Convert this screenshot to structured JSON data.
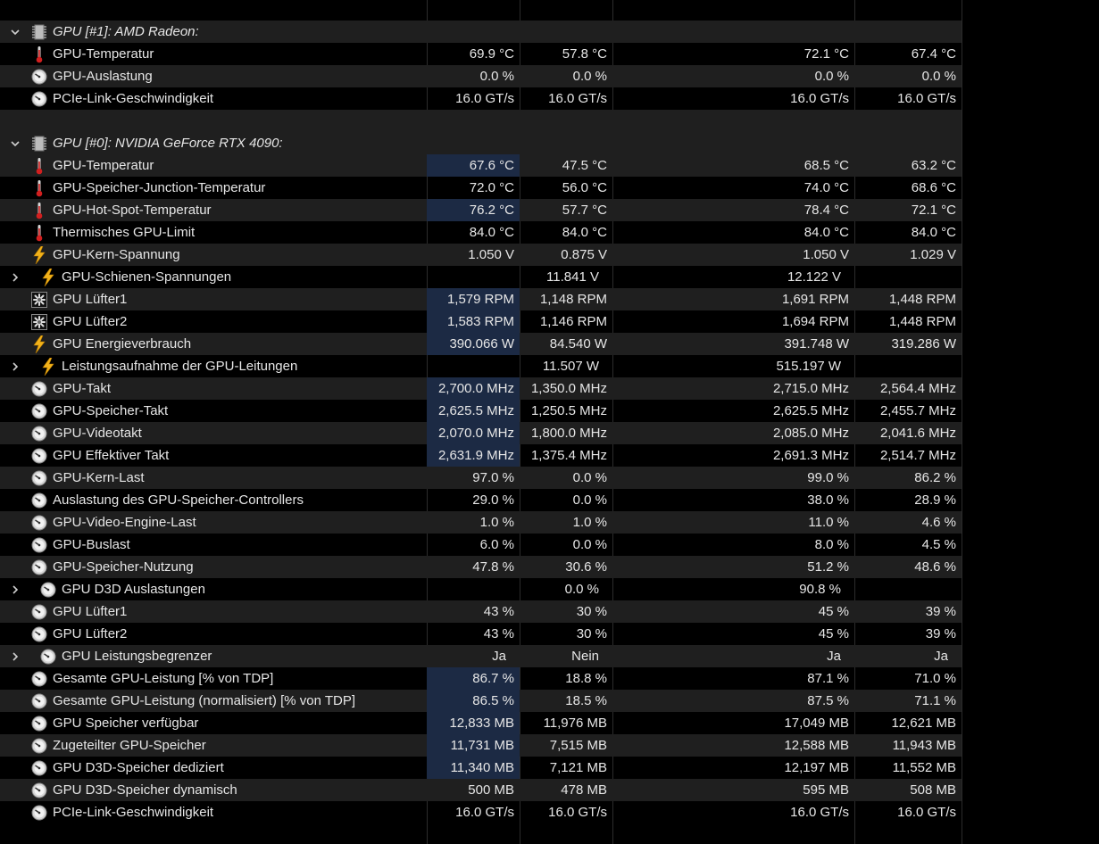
{
  "colors": {
    "background": "#000000",
    "row_band": "#1f1f1f",
    "highlight": "#1c2a44",
    "text": "#e6e6e6"
  },
  "groups": [
    {
      "title": "GPU [#1]: AMD Radeon:",
      "rows": [
        {
          "icon": "thermometer",
          "label": "GPU-Temperatur",
          "values": [
            "69.9 °C",
            "57.8 °C",
            "72.1 °C",
            "67.4 °C"
          ],
          "hl": false,
          "sub": false
        },
        {
          "icon": "gauge",
          "label": "GPU-Auslastung",
          "values": [
            "0.0 %",
            "0.0 %",
            "0.0 %",
            "0.0 %"
          ],
          "hl": false,
          "sub": false
        },
        {
          "icon": "gauge",
          "label": "PCIe-Link-Geschwindigkeit",
          "values": [
            "16.0 GT/s",
            "16.0 GT/s",
            "16.0 GT/s",
            "16.0 GT/s"
          ],
          "hl": false,
          "sub": false
        }
      ]
    },
    {
      "title": "GPU [#0]: NVIDIA GeForce RTX 4090:",
      "rows": [
        {
          "icon": "thermometer",
          "label": "GPU-Temperatur",
          "values": [
            "67.6 °C",
            "47.5 °C",
            "68.5 °C",
            "63.2 °C"
          ],
          "hl": true,
          "sub": false
        },
        {
          "icon": "thermometer",
          "label": "GPU-Speicher-Junction-Temperatur",
          "values": [
            "72.0 °C",
            "56.0 °C",
            "74.0 °C",
            "68.6 °C"
          ],
          "hl": false,
          "sub": false
        },
        {
          "icon": "thermometer",
          "label": "GPU-Hot-Spot-Temperatur",
          "values": [
            "76.2 °C",
            "57.7 °C",
            "78.4 °C",
            "72.1 °C"
          ],
          "hl": true,
          "sub": false
        },
        {
          "icon": "thermometer",
          "label": "Thermisches GPU-Limit",
          "values": [
            "84.0 °C",
            "84.0 °C",
            "84.0 °C",
            "84.0 °C"
          ],
          "hl": false,
          "sub": false
        },
        {
          "icon": "bolt",
          "label": "GPU-Kern-Spannung",
          "values": [
            "1.050 V",
            "0.875 V",
            "1.050 V",
            "1.029 V"
          ],
          "hl": false,
          "sub": false
        },
        {
          "icon": "bolt",
          "label": "GPU-Schienen-Spannungen",
          "values": [
            "",
            "11.841 V",
            "12.122 V",
            ""
          ],
          "hl": false,
          "sub": true
        },
        {
          "icon": "fan",
          "label": "GPU Lüfter1",
          "values": [
            "1,579 RPM",
            "1,148 RPM",
            "1,691 RPM",
            "1,448 RPM"
          ],
          "hl": true,
          "sub": false
        },
        {
          "icon": "fan",
          "label": "GPU Lüfter2",
          "values": [
            "1,583 RPM",
            "1,146 RPM",
            "1,694 RPM",
            "1,448 RPM"
          ],
          "hl": true,
          "sub": false
        },
        {
          "icon": "bolt",
          "label": "GPU Energieverbrauch",
          "values": [
            "390.066 W",
            "84.540 W",
            "391.748 W",
            "319.286 W"
          ],
          "hl": true,
          "sub": false
        },
        {
          "icon": "bolt",
          "label": "Leistungsaufnahme der GPU-Leitungen",
          "values": [
            "",
            "11.507 W",
            "515.197 W",
            ""
          ],
          "hl": false,
          "sub": true
        },
        {
          "icon": "gauge",
          "label": "GPU-Takt",
          "values": [
            "2,700.0 MHz",
            "1,350.0 MHz",
            "2,715.0 MHz",
            "2,564.4 MHz"
          ],
          "hl": true,
          "sub": false
        },
        {
          "icon": "gauge",
          "label": "GPU-Speicher-Takt",
          "values": [
            "2,625.5 MHz",
            "1,250.5 MHz",
            "2,625.5 MHz",
            "2,455.7 MHz"
          ],
          "hl": true,
          "sub": false
        },
        {
          "icon": "gauge",
          "label": "GPU-Videotakt",
          "values": [
            "2,070.0 MHz",
            "1,800.0 MHz",
            "2,085.0 MHz",
            "2,041.6 MHz"
          ],
          "hl": true,
          "sub": false
        },
        {
          "icon": "gauge",
          "label": "GPU Effektiver Takt",
          "values": [
            "2,631.9 MHz",
            "1,375.4 MHz",
            "2,691.3 MHz",
            "2,514.7 MHz"
          ],
          "hl": true,
          "sub": false
        },
        {
          "icon": "gauge",
          "label": "GPU-Kern-Last",
          "values": [
            "97.0 %",
            "0.0 %",
            "99.0 %",
            "86.2 %"
          ],
          "hl": false,
          "sub": false
        },
        {
          "icon": "gauge",
          "label": "Auslastung des GPU-Speicher-Controllers",
          "values": [
            "29.0 %",
            "0.0 %",
            "38.0 %",
            "28.9 %"
          ],
          "hl": false,
          "sub": false
        },
        {
          "icon": "gauge",
          "label": "GPU-Video-Engine-Last",
          "values": [
            "1.0 %",
            "1.0 %",
            "11.0 %",
            "4.6 %"
          ],
          "hl": false,
          "sub": false
        },
        {
          "icon": "gauge",
          "label": "GPU-Buslast",
          "values": [
            "6.0 %",
            "0.0 %",
            "8.0 %",
            "4.5 %"
          ],
          "hl": false,
          "sub": false
        },
        {
          "icon": "gauge",
          "label": "GPU-Speicher-Nutzung",
          "values": [
            "47.8 %",
            "30.6 %",
            "51.2 %",
            "48.6 %"
          ],
          "hl": false,
          "sub": false
        },
        {
          "icon": "gauge",
          "label": "GPU D3D Auslastungen",
          "values": [
            "",
            "0.0 %",
            "90.8 %",
            ""
          ],
          "hl": false,
          "sub": true
        },
        {
          "icon": "gauge",
          "label": "GPU Lüfter1",
          "values": [
            "43 %",
            "30 %",
            "45 %",
            "39 %"
          ],
          "hl": false,
          "sub": false
        },
        {
          "icon": "gauge",
          "label": "GPU Lüfter2",
          "values": [
            "43 %",
            "30 %",
            "45 %",
            "39 %"
          ],
          "hl": false,
          "sub": false
        },
        {
          "icon": "gauge",
          "label": "GPU Leistungsbegrenzer",
          "values": [
            "Ja",
            "Nein",
            "Ja",
            "Ja"
          ],
          "hl": false,
          "sub": true
        },
        {
          "icon": "gauge",
          "label": "Gesamte GPU-Leistung [% von TDP]",
          "values": [
            "86.7 %",
            "18.8 %",
            "87.1 %",
            "71.0 %"
          ],
          "hl": true,
          "sub": false
        },
        {
          "icon": "gauge",
          "label": "Gesamte GPU-Leistung (normalisiert) [% von TDP]",
          "values": [
            "86.5 %",
            "18.5 %",
            "87.5 %",
            "71.1 %"
          ],
          "hl": true,
          "sub": false
        },
        {
          "icon": "gauge",
          "label": "GPU Speicher verfügbar",
          "values": [
            "12,833 MB",
            "11,976 MB",
            "17,049 MB",
            "12,621 MB"
          ],
          "hl": true,
          "sub": false
        },
        {
          "icon": "gauge",
          "label": "Zugeteilter GPU-Speicher",
          "values": [
            "11,731 MB",
            "7,515 MB",
            "12,588 MB",
            "11,943 MB"
          ],
          "hl": true,
          "sub": false
        },
        {
          "icon": "gauge",
          "label": "GPU D3D-Speicher dediziert",
          "values": [
            "11,340 MB",
            "7,121 MB",
            "12,197 MB",
            "11,552 MB"
          ],
          "hl": true,
          "sub": false
        },
        {
          "icon": "gauge",
          "label": "GPU D3D-Speicher dynamisch",
          "values": [
            "500 MB",
            "478 MB",
            "595 MB",
            "508 MB"
          ],
          "hl": false,
          "sub": false
        },
        {
          "icon": "gauge",
          "label": "PCIe-Link-Geschwindigkeit",
          "values": [
            "16.0 GT/s",
            "16.0 GT/s",
            "16.0 GT/s",
            "16.0 GT/s"
          ],
          "hl": false,
          "sub": false
        }
      ]
    }
  ]
}
